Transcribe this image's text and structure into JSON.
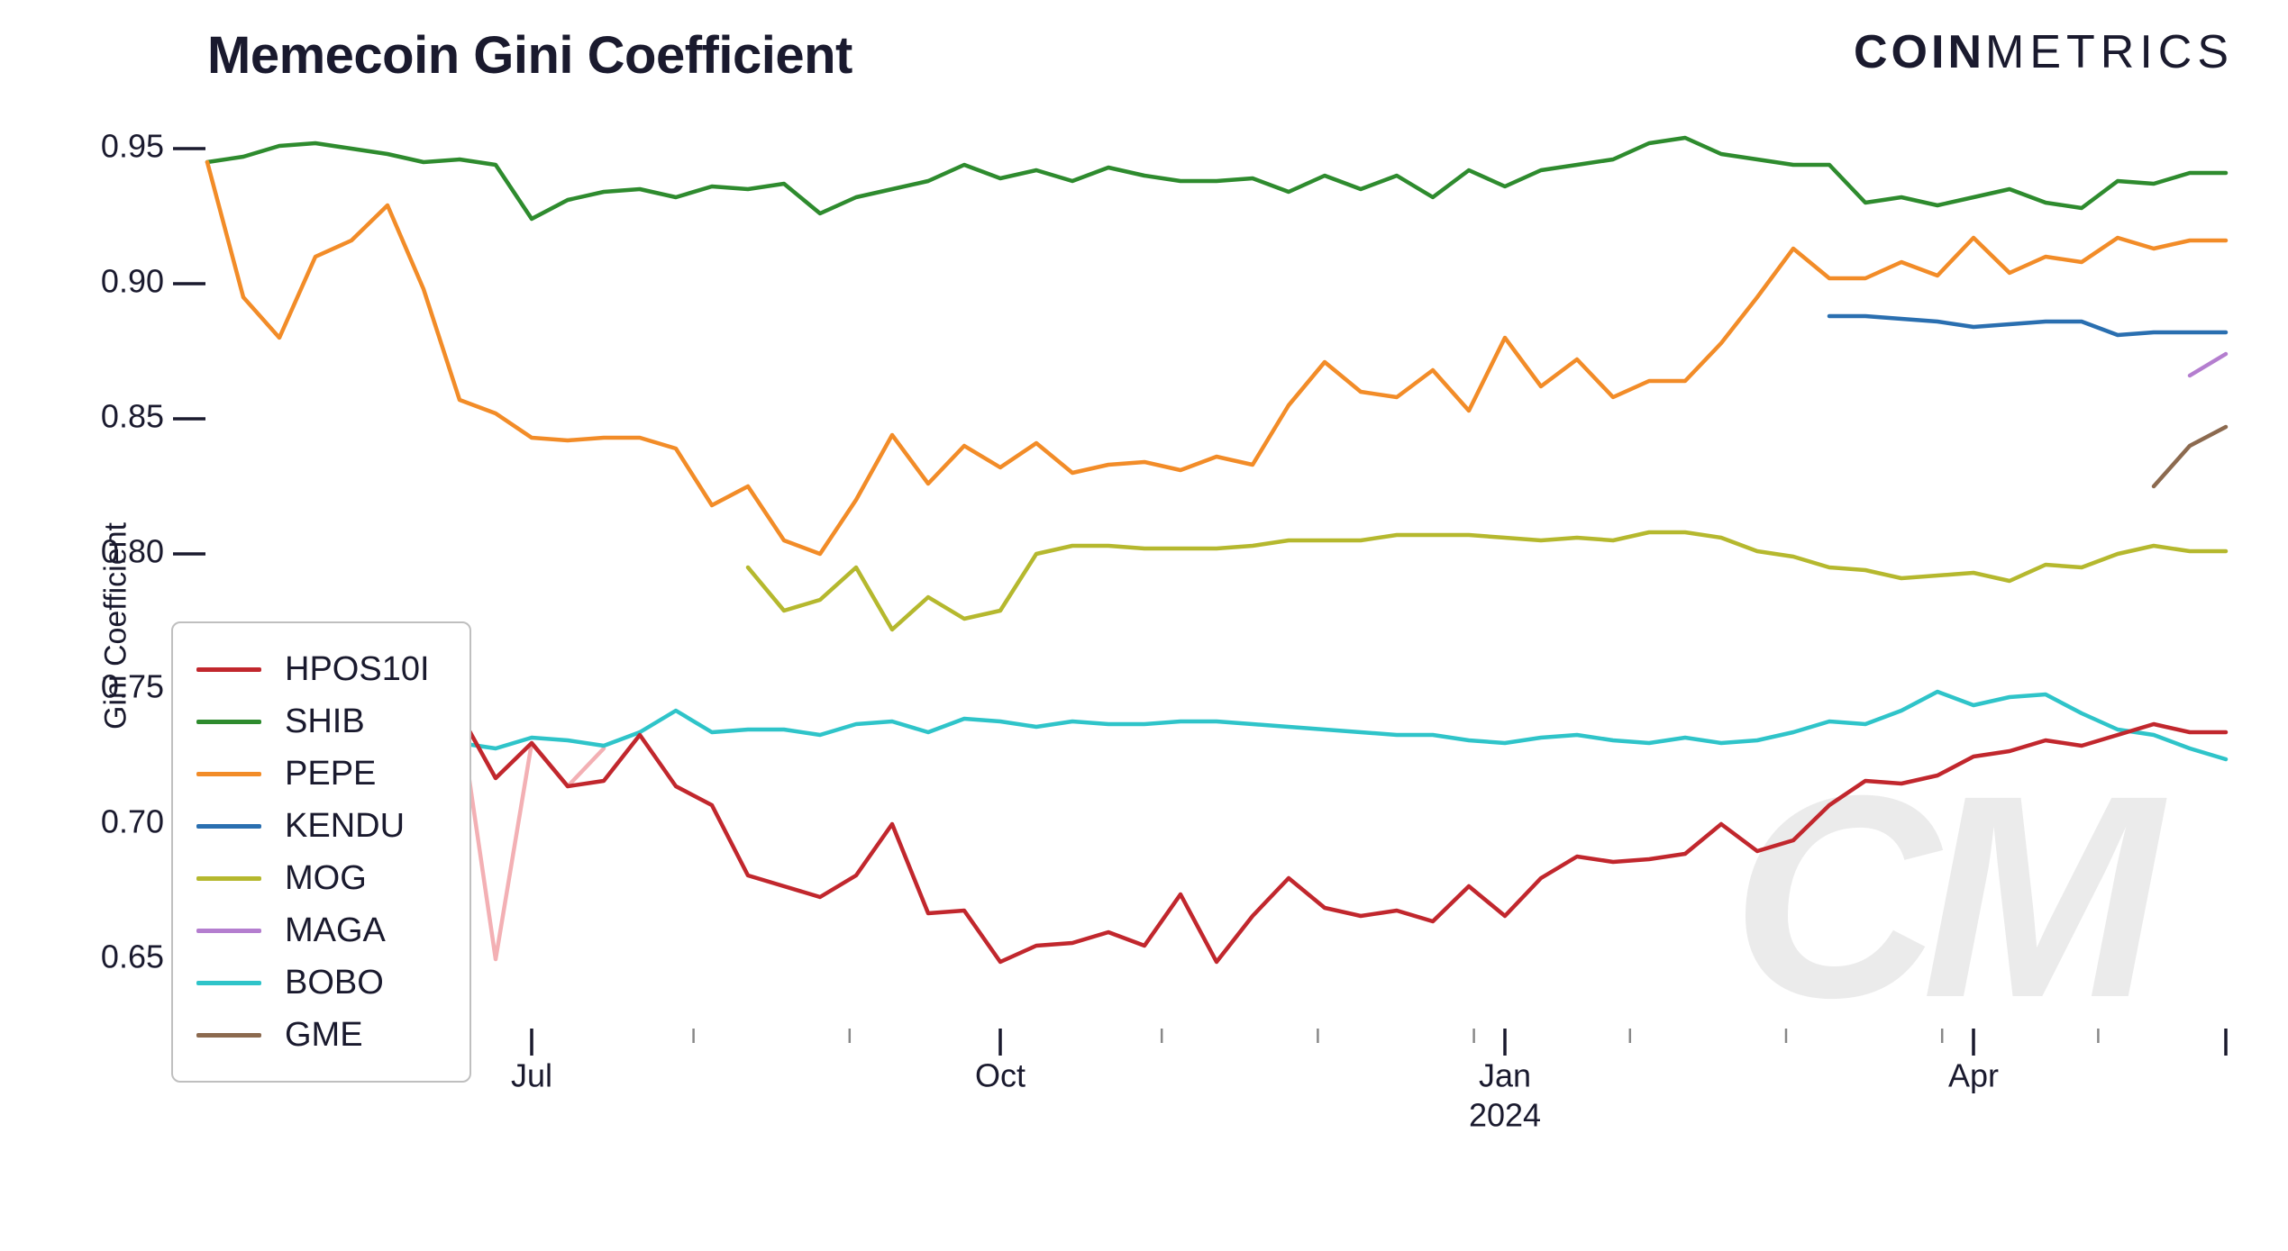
{
  "chart": {
    "type": "line",
    "title": "Memecoin Gini Coefficient",
    "title_fontsize": 58,
    "title_fontweight": 700,
    "brand_bold": "COIN",
    "brand_light": "METRICS",
    "ylabel": "Gini Coefficient",
    "ylabel_fontsize": 34,
    "background_color": "#ffffff",
    "text_color": "#1a1a2e",
    "watermark_text": "CM",
    "watermark_color": "#00000014",
    "line_width": 4.5,
    "ylim": [
      0.625,
      0.965
    ],
    "yticks": [
      0.65,
      0.7,
      0.75,
      0.8,
      0.85,
      0.9,
      0.95
    ],
    "ytick_labels": [
      "0.65",
      "0.70",
      "0.75",
      "0.80",
      "0.85",
      "0.90",
      "0.95"
    ],
    "x_index_range": [
      0,
      56
    ],
    "x_major_ticks": [
      {
        "i": 0,
        "label": ""
      },
      {
        "i": 9,
        "label": "Jul"
      },
      {
        "i": 22,
        "label": "Oct"
      },
      {
        "i": 36,
        "label": "Jan"
      },
      {
        "i": 49,
        "label": "Apr"
      },
      {
        "i": 56,
        "label": ""
      }
    ],
    "x_year_label": {
      "i": 36,
      "text": "2024"
    },
    "x_minor_tick_step": 4.33,
    "x_minor_tick_count": 13,
    "legend": {
      "border_color": "#bfbfbf",
      "items": [
        {
          "key": "HPOS10I",
          "color": "#c1272d"
        },
        {
          "key": "SHIB",
          "color": "#2e8b2e"
        },
        {
          "key": "PEPE",
          "color": "#f28c28"
        },
        {
          "key": "KENDU",
          "color": "#2a6fb0"
        },
        {
          "key": "MOG",
          "color": "#b5b82e"
        },
        {
          "key": "MAGA",
          "color": "#b47ecf"
        },
        {
          "key": "BOBO",
          "color": "#2fc4c9"
        },
        {
          "key": "GME",
          "color": "#8c6a4f"
        }
      ]
    },
    "series": {
      "SHIB": {
        "color": "#2e8b2e",
        "y": [
          0.945,
          0.947,
          0.951,
          0.952,
          0.95,
          0.948,
          0.945,
          0.946,
          0.944,
          0.924,
          0.931,
          0.934,
          0.935,
          0.932,
          0.936,
          0.935,
          0.937,
          0.926,
          0.932,
          0.935,
          0.938,
          0.944,
          0.939,
          0.942,
          0.938,
          0.943,
          0.94,
          0.938,
          0.938,
          0.939,
          0.934,
          0.94,
          0.935,
          0.94,
          0.932,
          0.942,
          0.936,
          0.942,
          0.944,
          0.946,
          0.952,
          0.954,
          0.948,
          0.946,
          0.944,
          0.944,
          0.93,
          0.932,
          0.929,
          0.932,
          0.935,
          0.93,
          0.928,
          0.938,
          0.937,
          0.941,
          0.941
        ]
      },
      "PEPE": {
        "color": "#f28c28",
        "y": [
          0.945,
          0.895,
          0.88,
          0.91,
          0.916,
          0.929,
          0.898,
          0.857,
          0.852,
          0.843,
          0.842,
          0.843,
          0.843,
          0.839,
          0.818,
          0.825,
          0.805,
          0.8,
          0.82,
          0.844,
          0.826,
          0.84,
          0.832,
          0.841,
          0.83,
          0.833,
          0.834,
          0.831,
          0.836,
          0.833,
          0.855,
          0.871,
          0.86,
          0.858,
          0.868,
          0.853,
          0.88,
          0.862,
          0.872,
          0.858,
          0.864,
          0.864,
          0.878,
          0.895,
          0.913,
          0.902,
          0.902,
          0.908,
          0.903,
          0.917,
          0.904,
          0.91,
          0.908,
          0.917,
          0.913,
          0.916,
          0.916
        ]
      },
      "MOG": {
        "color": "#b5b82e",
        "y": [
          null,
          null,
          null,
          null,
          null,
          null,
          null,
          null,
          null,
          null,
          null,
          null,
          null,
          null,
          null,
          0.795,
          0.779,
          0.783,
          0.795,
          0.772,
          0.784,
          0.776,
          0.779,
          0.8,
          0.803,
          0.803,
          0.802,
          0.802,
          0.802,
          0.803,
          0.805,
          0.805,
          0.805,
          0.807,
          0.807,
          0.807,
          0.806,
          0.805,
          0.806,
          0.805,
          0.808,
          0.808,
          0.806,
          0.801,
          0.799,
          0.795,
          0.794,
          0.791,
          0.792,
          0.793,
          0.79,
          0.796,
          0.795,
          0.8,
          0.803,
          0.801,
          0.801
        ]
      },
      "BOBO": {
        "color": "#2fc4c9",
        "y": [
          null,
          null,
          null,
          null,
          null,
          null,
          null,
          0.73,
          0.728,
          0.732,
          0.731,
          0.729,
          0.734,
          0.742,
          0.734,
          0.735,
          0.735,
          0.733,
          0.737,
          0.738,
          0.734,
          0.739,
          0.738,
          0.736,
          0.738,
          0.737,
          0.737,
          0.738,
          0.738,
          0.737,
          0.736,
          0.735,
          0.734,
          0.733,
          0.733,
          0.731,
          0.73,
          0.732,
          0.733,
          0.731,
          0.73,
          0.732,
          0.73,
          0.731,
          0.734,
          0.738,
          0.737,
          0.742,
          0.749,
          0.744,
          0.747,
          0.748,
          0.741,
          0.735,
          0.733,
          0.728,
          0.724
        ]
      },
      "HPOS10I": {
        "color": "#c1272d",
        "y": [
          null,
          null,
          null,
          null,
          null,
          null,
          null,
          0.741,
          0.717,
          0.73,
          0.714,
          0.716,
          0.733,
          0.714,
          0.707,
          0.681,
          0.677,
          0.673,
          0.681,
          0.7,
          0.667,
          0.668,
          0.649,
          0.655,
          0.656,
          0.66,
          0.655,
          0.674,
          0.649,
          0.666,
          0.68,
          0.669,
          0.666,
          0.668,
          0.664,
          0.677,
          0.666,
          0.68,
          0.688,
          0.686,
          0.687,
          0.689,
          0.7,
          0.69,
          0.694,
          0.707,
          0.716,
          0.715,
          0.718,
          0.725,
          0.727,
          0.731,
          0.729,
          0.733,
          0.737,
          0.734,
          0.734
        ]
      },
      "HPOS10I_light": {
        "color": "#f3b0b4",
        "y": [
          null,
          null,
          null,
          null,
          null,
          0.739,
          0.715,
          0.741,
          0.65,
          0.73,
          0.714,
          0.728,
          null,
          null,
          null,
          null,
          null,
          null,
          null,
          null,
          null,
          null,
          null,
          null,
          null,
          null,
          null,
          null,
          null,
          null,
          null,
          null,
          null,
          null,
          null,
          null,
          null,
          null,
          null,
          null,
          null,
          null,
          null,
          null,
          null,
          null,
          null,
          null,
          null,
          null,
          null,
          null,
          null,
          null,
          null,
          null,
          null
        ]
      },
      "KENDU": {
        "color": "#2a6fb0",
        "y": [
          null,
          null,
          null,
          null,
          null,
          null,
          null,
          null,
          null,
          null,
          null,
          null,
          null,
          null,
          null,
          null,
          null,
          null,
          null,
          null,
          null,
          null,
          null,
          null,
          null,
          null,
          null,
          null,
          null,
          null,
          null,
          null,
          null,
          null,
          null,
          null,
          null,
          null,
          null,
          null,
          null,
          null,
          null,
          null,
          null,
          0.888,
          0.888,
          0.887,
          0.886,
          0.884,
          0.885,
          0.886,
          0.886,
          0.881,
          0.882,
          0.882,
          0.882
        ]
      },
      "MAGA": {
        "color": "#b47ecf",
        "y": [
          null,
          null,
          null,
          null,
          null,
          null,
          null,
          null,
          null,
          null,
          null,
          null,
          null,
          null,
          null,
          null,
          null,
          null,
          null,
          null,
          null,
          null,
          null,
          null,
          null,
          null,
          null,
          null,
          null,
          null,
          null,
          null,
          null,
          null,
          null,
          null,
          null,
          null,
          null,
          null,
          null,
          null,
          null,
          null,
          null,
          null,
          null,
          null,
          null,
          null,
          null,
          null,
          null,
          null,
          null,
          0.866,
          0.874
        ]
      },
      "GME": {
        "color": "#8c6a4f",
        "y": [
          null,
          null,
          null,
          null,
          null,
          null,
          null,
          null,
          null,
          null,
          null,
          null,
          null,
          null,
          null,
          null,
          null,
          null,
          null,
          null,
          null,
          null,
          null,
          null,
          null,
          null,
          null,
          null,
          null,
          null,
          null,
          null,
          null,
          null,
          null,
          null,
          null,
          null,
          null,
          null,
          null,
          null,
          null,
          null,
          null,
          null,
          null,
          null,
          null,
          null,
          null,
          null,
          null,
          null,
          0.825,
          0.84,
          0.847
        ]
      }
    }
  }
}
